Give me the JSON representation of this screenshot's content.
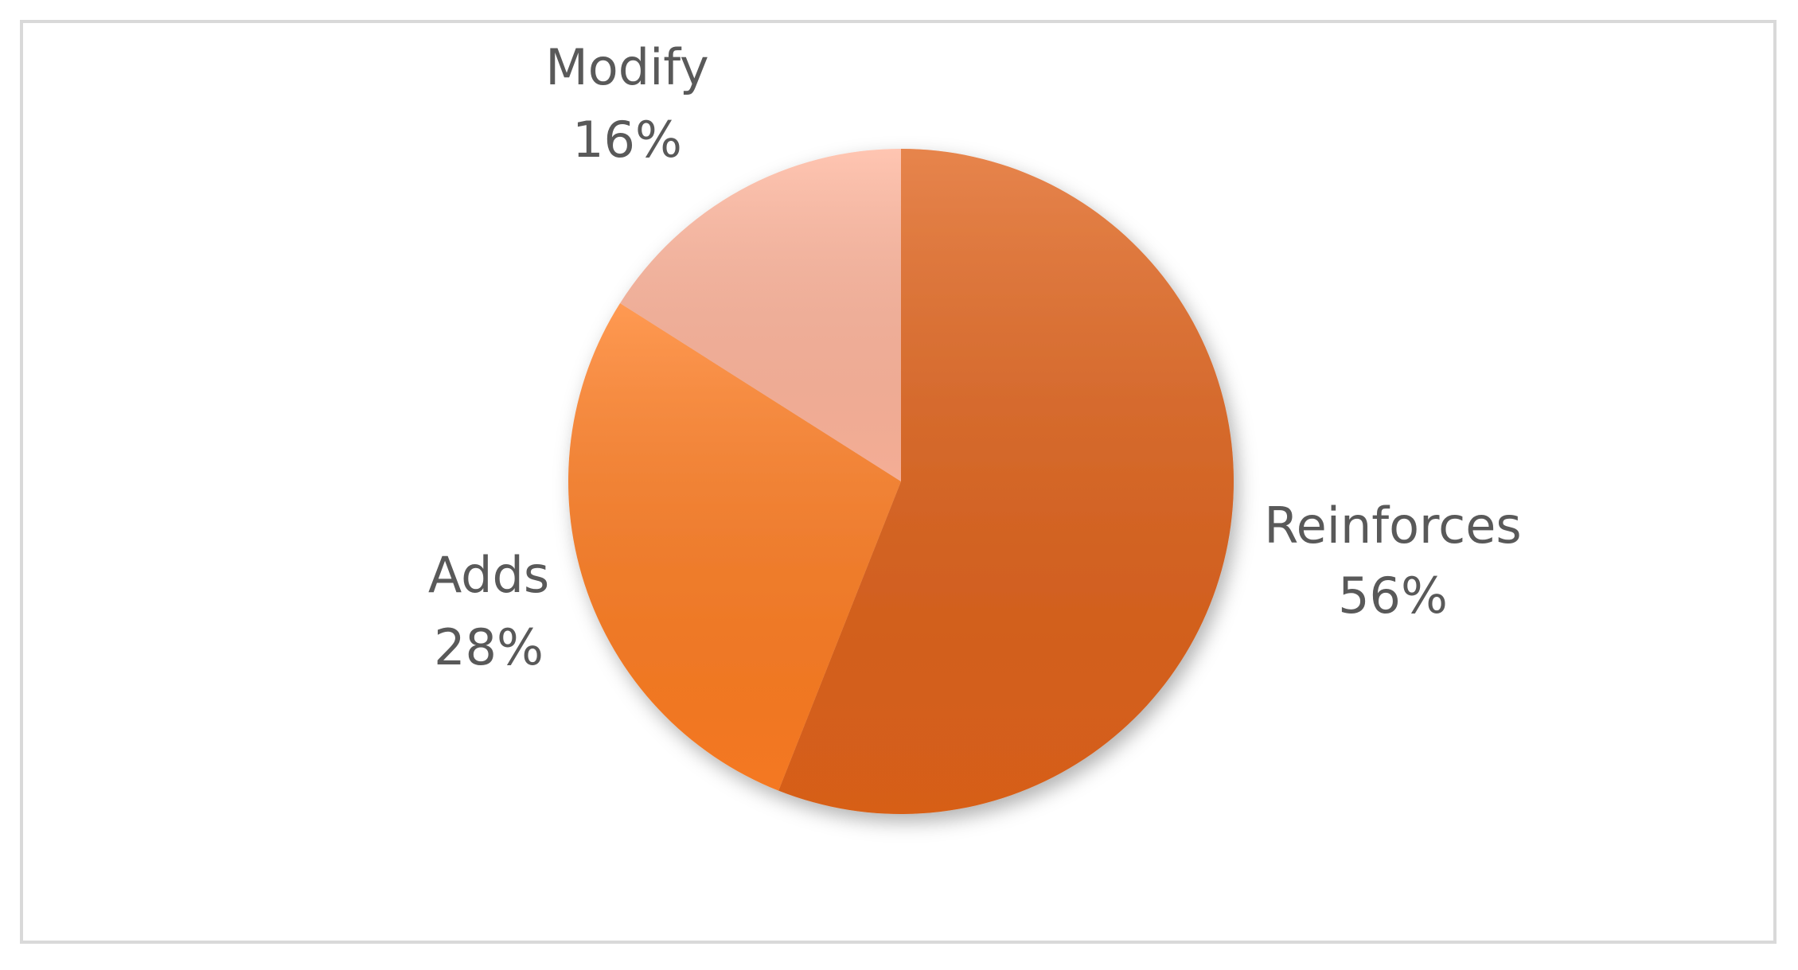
{
  "chart_data": {
    "type": "pie",
    "categories": [
      "Reinforces",
      "Adds",
      "Modify"
    ],
    "values": [
      56,
      28,
      16
    ],
    "value_labels": [
      "56%",
      "28%",
      "16%"
    ],
    "colors": [
      "#e0621a",
      "#ff7d22",
      "#ffb59c"
    ]
  }
}
